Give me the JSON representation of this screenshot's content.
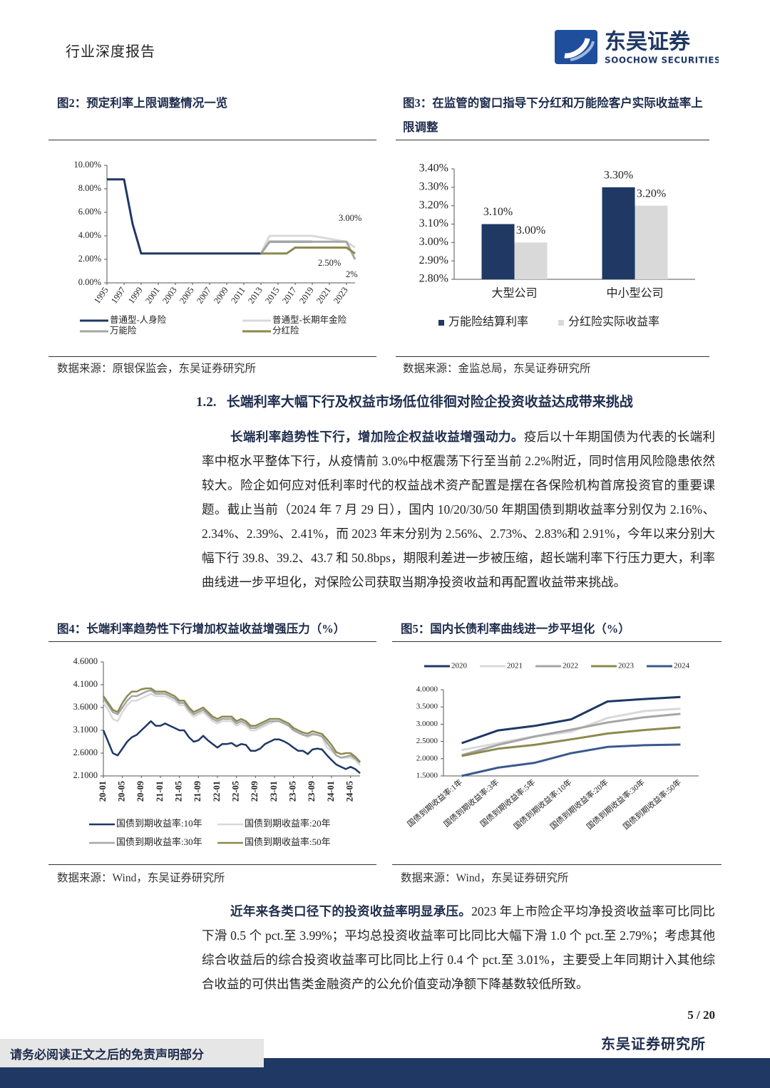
{
  "header": {
    "title": "行业深度报告",
    "logo_cn": "东吴证券",
    "logo_en": "SOOCHOW SECURITIES"
  },
  "chart_data": [
    {
      "type": "line",
      "title": "图2：预定利率上限调整情况一览",
      "source": "数据来源：原银保监会，东吴证券研究所",
      "x": [
        1995,
        1997,
        1998,
        1999,
        2013,
        2014,
        2016,
        2017,
        2019,
        2023,
        2024
      ],
      "xlim": [
        1995,
        2024
      ],
      "xticks": [
        1995,
        1997,
        1999,
        2001,
        2003,
        2005,
        2007,
        2009,
        2011,
        2013,
        2015,
        2017,
        2019,
        2021,
        2023
      ],
      "ylim": [
        0,
        10
      ],
      "yticks": [
        {
          "value": 0,
          "label": "0.00%"
        },
        {
          "value": 2,
          "label": "2.00%"
        },
        {
          "value": 4,
          "label": "4.00%"
        },
        {
          "value": 6,
          "label": "6.00%"
        },
        {
          "value": 8,
          "label": "8.00%"
        },
        {
          "value": 10,
          "label": "10.00%"
        }
      ],
      "series": [
        {
          "name": "普通型-人身险",
          "color": "#1f3864",
          "values": [
            8.8,
            8.8,
            5,
            2.5,
            2.5,
            3.5,
            3.5,
            3.5,
            3.5,
            null,
            null
          ]
        },
        {
          "name": "普通型-长期年金险",
          "color": "#d9d9d9",
          "values": [
            null,
            null,
            null,
            null,
            2.5,
            4,
            4,
            4,
            4,
            3.5,
            3
          ]
        },
        {
          "name": "万能险",
          "color": "#a6a6a6",
          "values": [
            null,
            null,
            null,
            null,
            2.5,
            3.5,
            3.5,
            3.5,
            3.5,
            3.5,
            2
          ]
        },
        {
          "name": "分红险",
          "color": "#8b8a4f",
          "values": [
            null,
            null,
            null,
            null,
            2.5,
            2.5,
            2.5,
            3,
            3,
            3,
            2.5
          ]
        }
      ],
      "annotations": [
        "3.00%",
        "2.50%",
        "2%"
      ]
    },
    {
      "type": "bar",
      "title": "图3：在监管的窗口指导下分红和万能险客户实际收益率上限调整",
      "source": "数据来源：金监总局，东吴证券研究所",
      "categories": [
        "大型公司",
        "中小型公司"
      ],
      "ylim": [
        2.8,
        3.4
      ],
      "yticks": [
        {
          "value": 2.8,
          "label": "2.80%"
        },
        {
          "value": 2.9,
          "label": "2.90%"
        },
        {
          "value": 3.0,
          "label": "3.00%"
        },
        {
          "value": 3.1,
          "label": "3.10%"
        },
        {
          "value": 3.2,
          "label": "3.20%"
        },
        {
          "value": 3.3,
          "label": "3.30%"
        },
        {
          "value": 3.4,
          "label": "3.40%"
        }
      ],
      "series": [
        {
          "name": "万能险结算利率",
          "color": "#1f3864",
          "values": [
            3.1,
            3.3
          ],
          "value_labels": [
            "3.10%",
            "3.30%"
          ]
        },
        {
          "name": "分红险实际收益率",
          "color": "#d9d9d9",
          "values": [
            3.0,
            3.2
          ],
          "value_labels": [
            "3.00%",
            "3.20%"
          ]
        }
      ]
    },
    {
      "type": "line",
      "title": "图4：长端利率趋势性下行增加权益收益增强压力（%）",
      "source": "数据来源：Wind，东吴证券研究所",
      "x": [
        "20-01",
        "20-02",
        "20-03",
        "20-04",
        "20-05",
        "20-06",
        "20-07",
        "20-08",
        "20-09",
        "20-10",
        "20-11",
        "20-12",
        "21-01",
        "21-02",
        "21-03",
        "21-04",
        "21-05",
        "21-06",
        "21-07",
        "21-08",
        "21-09",
        "21-10",
        "21-11",
        "21-12",
        "22-01",
        "22-02",
        "22-03",
        "22-04",
        "22-05",
        "22-06",
        "22-07",
        "22-08",
        "22-09",
        "22-10",
        "22-11",
        "22-12",
        "23-01",
        "23-02",
        "23-03",
        "23-04",
        "23-05",
        "23-06",
        "23-07",
        "23-08",
        "23-09",
        "23-10",
        "23-11",
        "23-12",
        "24-01",
        "24-02",
        "24-03",
        "24-04",
        "24-05",
        "24-06",
        "24-07"
      ],
      "xticks": [
        "20-01",
        "20-05",
        "20-09",
        "21-01",
        "21-05",
        "21-09",
        "22-01",
        "22-05",
        "22-09",
        "23-01",
        "23-05",
        "23-09",
        "24-01",
        "24-05"
      ],
      "ylim": [
        2.1,
        4.6
      ],
      "yticks": [
        {
          "value": 2.1,
          "label": "2.1000"
        },
        {
          "value": 2.6,
          "label": "2.6000"
        },
        {
          "value": 3.1,
          "label": "3.1000"
        },
        {
          "value": 3.6,
          "label": "3.6000"
        },
        {
          "value": 4.1,
          "label": "4.1000"
        },
        {
          "value": 4.6,
          "label": "4.6000"
        }
      ],
      "series": [
        {
          "name": "国债到期收益率:10年",
          "color": "#1f3864",
          "values": [
            3.1,
            2.85,
            2.6,
            2.55,
            2.7,
            2.85,
            2.95,
            3.0,
            3.1,
            3.2,
            3.3,
            3.2,
            3.2,
            3.25,
            3.2,
            3.15,
            3.1,
            3.1,
            2.95,
            2.85,
            2.88,
            2.98,
            2.88,
            2.8,
            2.72,
            2.8,
            2.8,
            2.82,
            2.75,
            2.8,
            2.78,
            2.65,
            2.65,
            2.7,
            2.8,
            2.85,
            2.9,
            2.9,
            2.86,
            2.8,
            2.72,
            2.65,
            2.65,
            2.58,
            2.68,
            2.7,
            2.68,
            2.56,
            2.45,
            2.35,
            2.3,
            2.25,
            2.3,
            2.25,
            2.16
          ]
        },
        {
          "name": "国债到期收益率:20年",
          "color": "#d9d9d9",
          "values": [
            3.7,
            3.55,
            3.35,
            3.3,
            3.5,
            3.65,
            3.75,
            3.75,
            3.8,
            3.85,
            3.9,
            3.85,
            3.85,
            3.85,
            3.8,
            3.75,
            3.65,
            3.65,
            3.5,
            3.4,
            3.45,
            3.5,
            3.4,
            3.3,
            3.25,
            3.3,
            3.3,
            3.3,
            3.2,
            3.25,
            3.2,
            3.1,
            3.1,
            3.15,
            3.2,
            3.25,
            3.3,
            3.3,
            3.25,
            3.2,
            3.1,
            3.05,
            3.0,
            2.95,
            3.0,
            3.0,
            2.95,
            2.73,
            2.65,
            2.55,
            2.5,
            2.5,
            2.5,
            2.45,
            2.34
          ]
        },
        {
          "name": "国债到期收益率:30年",
          "color": "#a6a6a6",
          "values": [
            3.8,
            3.65,
            3.5,
            3.45,
            3.6,
            3.75,
            3.85,
            3.85,
            3.9,
            3.95,
            3.98,
            3.9,
            3.9,
            3.9,
            3.85,
            3.8,
            3.7,
            3.7,
            3.55,
            3.45,
            3.5,
            3.55,
            3.45,
            3.35,
            3.3,
            3.35,
            3.35,
            3.35,
            3.25,
            3.3,
            3.25,
            3.15,
            3.15,
            3.2,
            3.25,
            3.3,
            3.3,
            3.3,
            3.25,
            3.2,
            3.1,
            3.05,
            3.0,
            2.98,
            3.02,
            3.0,
            2.97,
            2.83,
            2.7,
            2.55,
            2.5,
            2.52,
            2.55,
            2.48,
            2.39
          ]
        },
        {
          "name": "国债到期收益率:50年",
          "color": "#8b8a4f",
          "values": [
            3.85,
            3.7,
            3.55,
            3.5,
            3.7,
            3.85,
            3.95,
            3.95,
            4.0,
            4.02,
            4.02,
            3.95,
            3.95,
            3.95,
            3.9,
            3.85,
            3.75,
            3.75,
            3.6,
            3.5,
            3.55,
            3.6,
            3.5,
            3.4,
            3.35,
            3.4,
            3.4,
            3.4,
            3.3,
            3.35,
            3.3,
            3.2,
            3.2,
            3.25,
            3.3,
            3.35,
            3.35,
            3.35,
            3.3,
            3.25,
            3.15,
            3.1,
            3.05,
            3.03,
            3.08,
            3.05,
            3.02,
            2.91,
            2.78,
            2.62,
            2.58,
            2.6,
            2.6,
            2.52,
            2.41
          ]
        }
      ]
    },
    {
      "type": "line",
      "title": "图5：国内长债利率曲线进一步平坦化（%）",
      "source": "数据来源：Wind，东吴证券研究所",
      "categories": [
        "国债到期收益率:1年",
        "国债到期收益率:3年",
        "国债到期收益率:5年",
        "国债到期收益率:10年",
        "国债到期收益率:20年",
        "国债到期收益率:30年",
        "国债到期收益率:50年"
      ],
      "ylim": [
        1.5,
        4.0
      ],
      "yticks": [
        {
          "value": 1.5,
          "label": "1.5000"
        },
        {
          "value": 2.0,
          "label": "2.0000"
        },
        {
          "value": 2.5,
          "label": "2.5000"
        },
        {
          "value": 3.0,
          "label": "3.0000"
        },
        {
          "value": 3.5,
          "label": "3.5000"
        },
        {
          "value": 4.0,
          "label": "4.0000"
        }
      ],
      "series": [
        {
          "name": "2020",
          "color": "#1f3864",
          "values": [
            2.45,
            2.82,
            2.95,
            3.14,
            3.66,
            3.73,
            3.79
          ]
        },
        {
          "name": "2021",
          "color": "#d9d9d9",
          "values": [
            2.25,
            2.45,
            2.65,
            2.78,
            3.18,
            3.38,
            3.45
          ]
        },
        {
          "name": "2022",
          "color": "#a6a6a6",
          "values": [
            2.1,
            2.4,
            2.64,
            2.84,
            3.05,
            3.2,
            3.3
          ]
        },
        {
          "name": "2023",
          "color": "#8b8a4f",
          "values": [
            2.08,
            2.29,
            2.4,
            2.56,
            2.73,
            2.83,
            2.91
          ]
        },
        {
          "name": "2024",
          "color": "#3a5a8c",
          "values": [
            1.5,
            1.74,
            1.88,
            2.16,
            2.34,
            2.39,
            2.41
          ]
        }
      ]
    }
  ],
  "section": {
    "number": "1.2.",
    "title": "长端利率大幅下行及权益市场低位徘徊对险企投资收益达成带来挑战"
  },
  "paragraphs": [
    {
      "lead": "长端利率趋势性下行，增加险企权益收益增强动力。",
      "text": "疫后以十年期国债为代表的长端利率中枢水平整体下行，从疫情前 3.0%中枢震荡下行至当前 2.2%附近，同时信用风险隐患依然较大。险企如何应对低利率时代的权益战术资产配置是摆在各保险机构首席投资官的重要课题。截止当前（2024 年 7 月 29 日），国内 10/20/30/50 年期国债到期收益率分别仅为 2.16%、2.34%、2.39%、2.41%，而 2023 年末分别为 2.56%、2.73%、2.83%和 2.91%，今年以来分别大幅下行 39.8、39.2、43.7 和 50.8bps，期限利差进一步被压缩，超长端利率下行压力更大，利率曲线进一步平坦化，对保险公司获取当期净投资收益和再配置收益带来挑战。"
    },
    {
      "lead": "近年来各类口径下的投资收益率明显承压。",
      "text": "2023 年上市险企平均净投资收益率可比同比下滑 0.5 个 pct.至 3.99%；平均总投资收益率可比同比大幅下滑 1.0 个 pct.至 2.79%；考虑其他综合收益后的综合投资收益率可比同比上行 0.4 个 pct.至 3.01%，主要受上年同期计入其他综合收益的可供出售类金融资产的公允价值变动净额下降基数较低所致。"
    }
  ],
  "footer": {
    "page": "5 / 20",
    "org": "东吴证券研究所",
    "disclaimer": "请务必阅读正文之后的免责声明部分"
  }
}
